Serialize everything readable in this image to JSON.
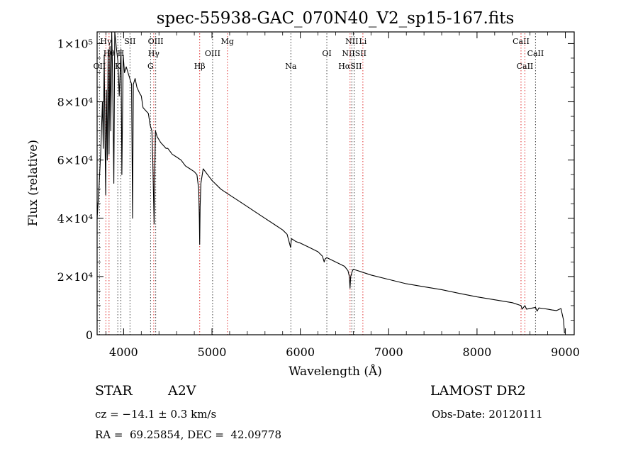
{
  "chart_data": {
    "type": "line",
    "title": "spec-55938-GAC_070N40_V2_sp15-167.fits",
    "xlabel": "Wavelength (Å)",
    "ylabel": "Flux (relative)",
    "xlim": [
      3700,
      9100
    ],
    "ylim": [
      0,
      104000
    ],
    "x_ticks": [
      4000,
      5000,
      6000,
      7000,
      8000,
      9000
    ],
    "y_ticks": [
      {
        "value": 0,
        "label": "0"
      },
      {
        "value": 20000,
        "label": "2×10⁴"
      },
      {
        "value": 40000,
        "label": "4×10⁴"
      },
      {
        "value": 60000,
        "label": "6×10⁴"
      },
      {
        "value": 80000,
        "label": "8×10⁴"
      },
      {
        "value": 100000,
        "label": "1×10⁵"
      }
    ],
    "grid": false,
    "series": [
      {
        "color": "#000000",
        "x": [
          3700,
          3720,
          3740,
          3760,
          3770,
          3780,
          3790,
          3797,
          3805,
          3815,
          3825,
          3835,
          3845,
          3855,
          3865,
          3875,
          3889,
          3900,
          3920,
          3935,
          3950,
          3970,
          3980,
          3995,
          4010,
          4030,
          4050,
          4070,
          4090,
          4101,
          4110,
          4130,
          4150,
          4180,
          4200,
          4220,
          4250,
          4280,
          4300,
          4320,
          4330,
          4340,
          4345,
          4350,
          4360,
          4380,
          4400,
          4420,
          4450,
          4480,
          4500,
          4550,
          4600,
          4650,
          4700,
          4750,
          4800,
          4830,
          4850,
          4857,
          4861,
          4866,
          4875,
          4900,
          4950,
          5000,
          5100,
          5200,
          5300,
          5400,
          5500,
          5600,
          5700,
          5800,
          5850,
          5890,
          5893,
          5900,
          5950,
          6000,
          6100,
          6200,
          6250,
          6270,
          6280,
          6300,
          6400,
          6500,
          6540,
          6555,
          6563,
          6570,
          6590,
          6600,
          6700,
          6800,
          7000,
          7200,
          7400,
          7600,
          7800,
          8000,
          8200,
          8400,
          8498,
          8510,
          8542,
          8560,
          8662,
          8680,
          8700,
          8750,
          8800,
          8850,
          8900,
          8950,
          8980,
          8990
        ],
        "y": [
          40000,
          50000,
          62000,
          80000,
          64000,
          96000,
          66000,
          48000,
          84000,
          60000,
          98000,
          62000,
          99000,
          70000,
          104000,
          90000,
          52000,
          104000,
          98000,
          94000,
          82000,
          98000,
          55000,
          96000,
          90000,
          92000,
          90000,
          88000,
          86000,
          40000,
          86000,
          88000,
          85000,
          83000,
          82000,
          78000,
          77000,
          76000,
          72000,
          70000,
          60000,
          45000,
          38000,
          52000,
          70000,
          68000,
          67000,
          66000,
          65000,
          64000,
          64000,
          62000,
          61000,
          60000,
          58000,
          57000,
          56000,
          55000,
          50000,
          40000,
          31000,
          44000,
          52000,
          57000,
          55000,
          53000,
          50000,
          48000,
          46000,
          44000,
          42000,
          40000,
          38000,
          36000,
          34500,
          30000,
          31000,
          33000,
          32000,
          31500,
          30000,
          28500,
          27000,
          25000,
          26000,
          26500,
          25000,
          23500,
          22000,
          20000,
          16000,
          20000,
          22000,
          22500,
          21500,
          20500,
          19000,
          17500,
          16500,
          15500,
          14200,
          13000,
          12000,
          11000,
          10000,
          8800,
          10000,
          8800,
          9400,
          8100,
          9200,
          9000,
          8800,
          8500,
          8300,
          9000,
          5000,
          500
        ]
      }
    ],
    "lines": [
      {
        "label": "Hγ",
        "x": 3799,
        "color": "#e03030",
        "row": 1
      },
      {
        "label": "Hθ",
        "x": 3835,
        "color": "#e03030",
        "row": 2
      },
      {
        "label": "OII",
        "x": 3727,
        "color": "#404040",
        "row": 3
      },
      {
        "label": "K",
        "x": 3934,
        "color": "#404040",
        "row": 3
      },
      {
        "label": "H",
        "x": 3969,
        "color": "#404040",
        "row": 2
      },
      {
        "label": "SII",
        "x": 4072,
        "color": "#404040",
        "row": 1
      },
      {
        "label": "OIII",
        "x": 4363,
        "color": "#404040",
        "row": 1
      },
      {
        "label": "Hγ",
        "x": 4341,
        "color": "#e03030",
        "row": 2
      },
      {
        "label": "G",
        "x": 4305,
        "color": "#404040",
        "row": 3
      },
      {
        "label": "Mg",
        "x": 5175,
        "color": "#e03030",
        "row": 1
      },
      {
        "label": "OIII",
        "x": 5007,
        "color": "#404040",
        "row": 2
      },
      {
        "label": "Hβ",
        "x": 4861,
        "color": "#e03030",
        "row": 3
      },
      {
        "label": "Na",
        "x": 5893,
        "color": "#404040",
        "row": 3
      },
      {
        "label": "NII",
        "x": 6583,
        "color": "#404040",
        "row": 1
      },
      {
        "label": "Li",
        "x": 6708,
        "color": "#e03030",
        "row": 1
      },
      {
        "label": "OI",
        "x": 6300,
        "color": "#404040",
        "row": 2
      },
      {
        "label": "NIISII",
        "x": 6610,
        "color": "#404040",
        "row": 2
      },
      {
        "label": "HαSII",
        "x": 6563,
        "color": "#e03030",
        "row": 3
      },
      {
        "label": "CaII",
        "x": 8498,
        "color": "#e03030",
        "row": 1
      },
      {
        "label": "CaII",
        "x": 8662,
        "color": "#404040",
        "row": 2
      },
      {
        "label": "CaII",
        "x": 8542,
        "color": "#e03030",
        "row": 3
      }
    ]
  },
  "info": {
    "object_class": "STAR",
    "subclass": "A2V",
    "survey": "LAMOST DR2",
    "cz": "cz = −14.1 ± 0.3 km/s",
    "obs_date": "Obs-Date: 20120111",
    "coords": "RA =  69.25854, DEC =  42.09778"
  }
}
